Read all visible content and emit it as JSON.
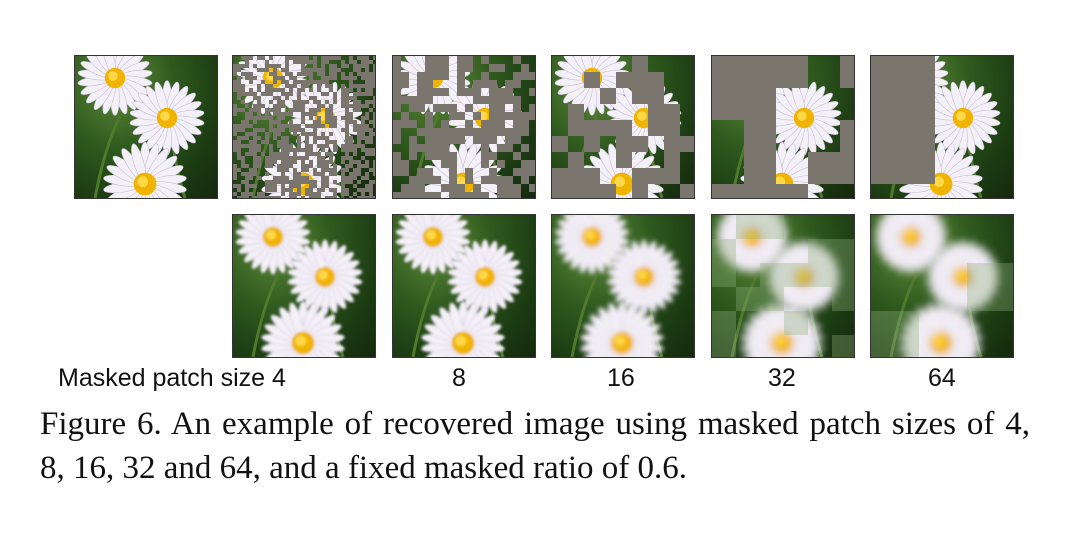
{
  "figure": {
    "first_label": "Masked patch size 4",
    "patch_labels": [
      "8",
      "16",
      "32",
      "64"
    ],
    "caption": "Figure 6.  An example of recovered image using masked patch sizes of 4, 8, 16, 32 and 64, and a fixed masked ratio of 0.6.",
    "mask_color": "#7b766d",
    "background_color": "#2f5a1e",
    "petal_color": "#f4f0f7",
    "center_color": "#f0b400"
  }
}
